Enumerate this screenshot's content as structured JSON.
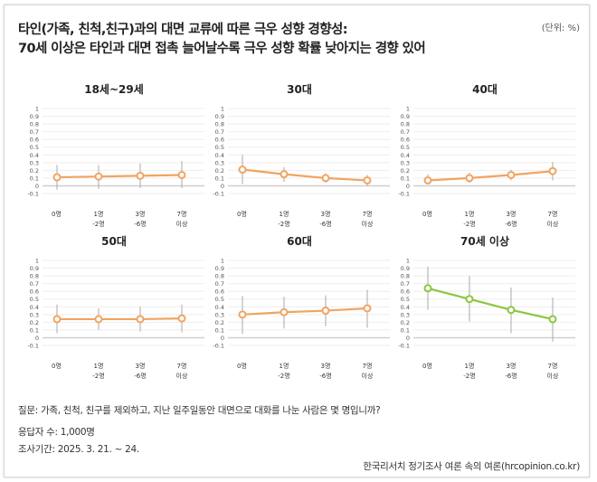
{
  "title_lines": [
    "타인(가족, 친척,친구)과의 대면 교류에 따른 극우 성향 경향성:",
    "70세 이상은 타인과 대면 접촉 늘어날수록 극우 성향 확률 낮아지는 경향 있어"
  ],
  "unit": "(단위: %)",
  "notes": {
    "question": "질문: 가족, 친척, 친구를 제외하고, 지난 일주일동안 대면으로 대화를 나눈 사람은 몇 명입니까?",
    "respondents": "응답자 수: 1,000명",
    "period": "조사기간: 2025. 3. 21. ~ 24."
  },
  "source": "한국리서치 정기조사 여론 속의 여론(hrcopinion.co.kr)",
  "chart_data": [
    {
      "type": "line",
      "title": "18세~29세",
      "color": "#f0a462",
      "categories": [
        [
          "0명"
        ],
        [
          "1명",
          "-2명"
        ],
        [
          "3명",
          "-6명"
        ],
        [
          "7명",
          "이상"
        ]
      ],
      "values": [
        0.11,
        0.12,
        0.13,
        0.14
      ],
      "error_low": [
        -0.05,
        -0.04,
        -0.03,
        -0.03
      ],
      "error_high": [
        0.27,
        0.27,
        0.29,
        0.32
      ],
      "yticks": [
        "1",
        "0.9",
        "0.8",
        "0.7",
        "0.6",
        "0.5",
        "0.4",
        "0.3",
        "0.2",
        "0.1",
        "0",
        "-0.1"
      ],
      "ylim": [
        -0.1,
        1
      ],
      "grid": true
    },
    {
      "type": "line",
      "title": "30대",
      "color": "#f0a462",
      "categories": [
        [
          "0명"
        ],
        [
          "1명",
          "-2명"
        ],
        [
          "3명",
          "-6명"
        ],
        [
          "7명",
          "이상"
        ]
      ],
      "values": [
        0.21,
        0.15,
        0.1,
        0.07
      ],
      "error_low": [
        0.02,
        0.05,
        0.04,
        0.0
      ],
      "error_high": [
        0.4,
        0.24,
        0.16,
        0.14
      ],
      "yticks": [
        "1",
        "0.9",
        "0.8",
        "0.7",
        "0.6",
        "0.5",
        "0.4",
        "0.3",
        "0.2",
        "0.1",
        "0",
        "-0.1"
      ],
      "ylim": [
        -0.1,
        1
      ],
      "grid": true
    },
    {
      "type": "line",
      "title": "40대",
      "color": "#f0a462",
      "categories": [
        [
          "0명"
        ],
        [
          "1명",
          "-2명"
        ],
        [
          "3명",
          "-6명"
        ],
        [
          "7명",
          "이상"
        ]
      ],
      "values": [
        0.07,
        0.1,
        0.14,
        0.19
      ],
      "error_low": [
        0.02,
        0.04,
        0.07,
        0.07
      ],
      "error_high": [
        0.15,
        0.17,
        0.21,
        0.31
      ],
      "yticks": [
        "1",
        "0.9",
        "0.8",
        "0.7",
        "0.6",
        "0.5",
        "0.4",
        "0.3",
        "0.2",
        "0.1",
        "0",
        "-0.1"
      ],
      "ylim": [
        -0.1,
        1
      ],
      "grid": true
    },
    {
      "type": "line",
      "title": "50대",
      "color": "#f0a462",
      "categories": [
        [
          "0명"
        ],
        [
          "1명",
          "-2명"
        ],
        [
          "3명",
          "-6명"
        ],
        [
          "7명",
          "이상"
        ]
      ],
      "values": [
        0.24,
        0.24,
        0.24,
        0.25
      ],
      "error_low": [
        0.06,
        0.1,
        0.08,
        0.07
      ],
      "error_high": [
        0.43,
        0.38,
        0.4,
        0.43
      ],
      "yticks": [
        "1",
        "0.9",
        "0.8",
        "0.7",
        "0.6",
        "0.5",
        "0.4",
        "0.3",
        "0.2",
        "0.1",
        "0",
        "-0.1"
      ],
      "ylim": [
        -0.1,
        1
      ],
      "grid": true
    },
    {
      "type": "line",
      "title": "60대",
      "color": "#f0a462",
      "categories": [
        [
          "0명"
        ],
        [
          "1명",
          "-2명"
        ],
        [
          "3명",
          "-6명"
        ],
        [
          "7명",
          "이상"
        ]
      ],
      "values": [
        0.3,
        0.33,
        0.35,
        0.38
      ],
      "error_low": [
        0.05,
        0.12,
        0.15,
        0.13
      ],
      "error_high": [
        0.54,
        0.53,
        0.55,
        0.62
      ],
      "yticks": [
        "1",
        "0.9",
        "0.8",
        "0.7",
        "0.6",
        "0.5",
        "0.4",
        "0.3",
        "0.2",
        "0.1",
        "0",
        "-0.1"
      ],
      "ylim": [
        -0.1,
        1
      ],
      "grid": true
    },
    {
      "type": "line",
      "title": "70세 이상",
      "color": "#8cc63f",
      "categories": [
        [
          "0명"
        ],
        [
          "1명",
          "-2명"
        ],
        [
          "3명",
          "-6명"
        ],
        [
          "7명",
          "이상"
        ]
      ],
      "values": [
        0.64,
        0.5,
        0.36,
        0.24
      ],
      "error_low": [
        0.36,
        0.21,
        0.06,
        -0.05
      ],
      "error_high": [
        0.92,
        0.8,
        0.65,
        0.52
      ],
      "yticks": [
        "1",
        "0.9",
        "0.8",
        "0.7",
        "0.6",
        "0.5",
        "0.4",
        "0.3",
        "0.2",
        "0.1",
        "0",
        "-0.1"
      ],
      "ylim": [
        -0.1,
        1
      ],
      "grid": true
    }
  ]
}
